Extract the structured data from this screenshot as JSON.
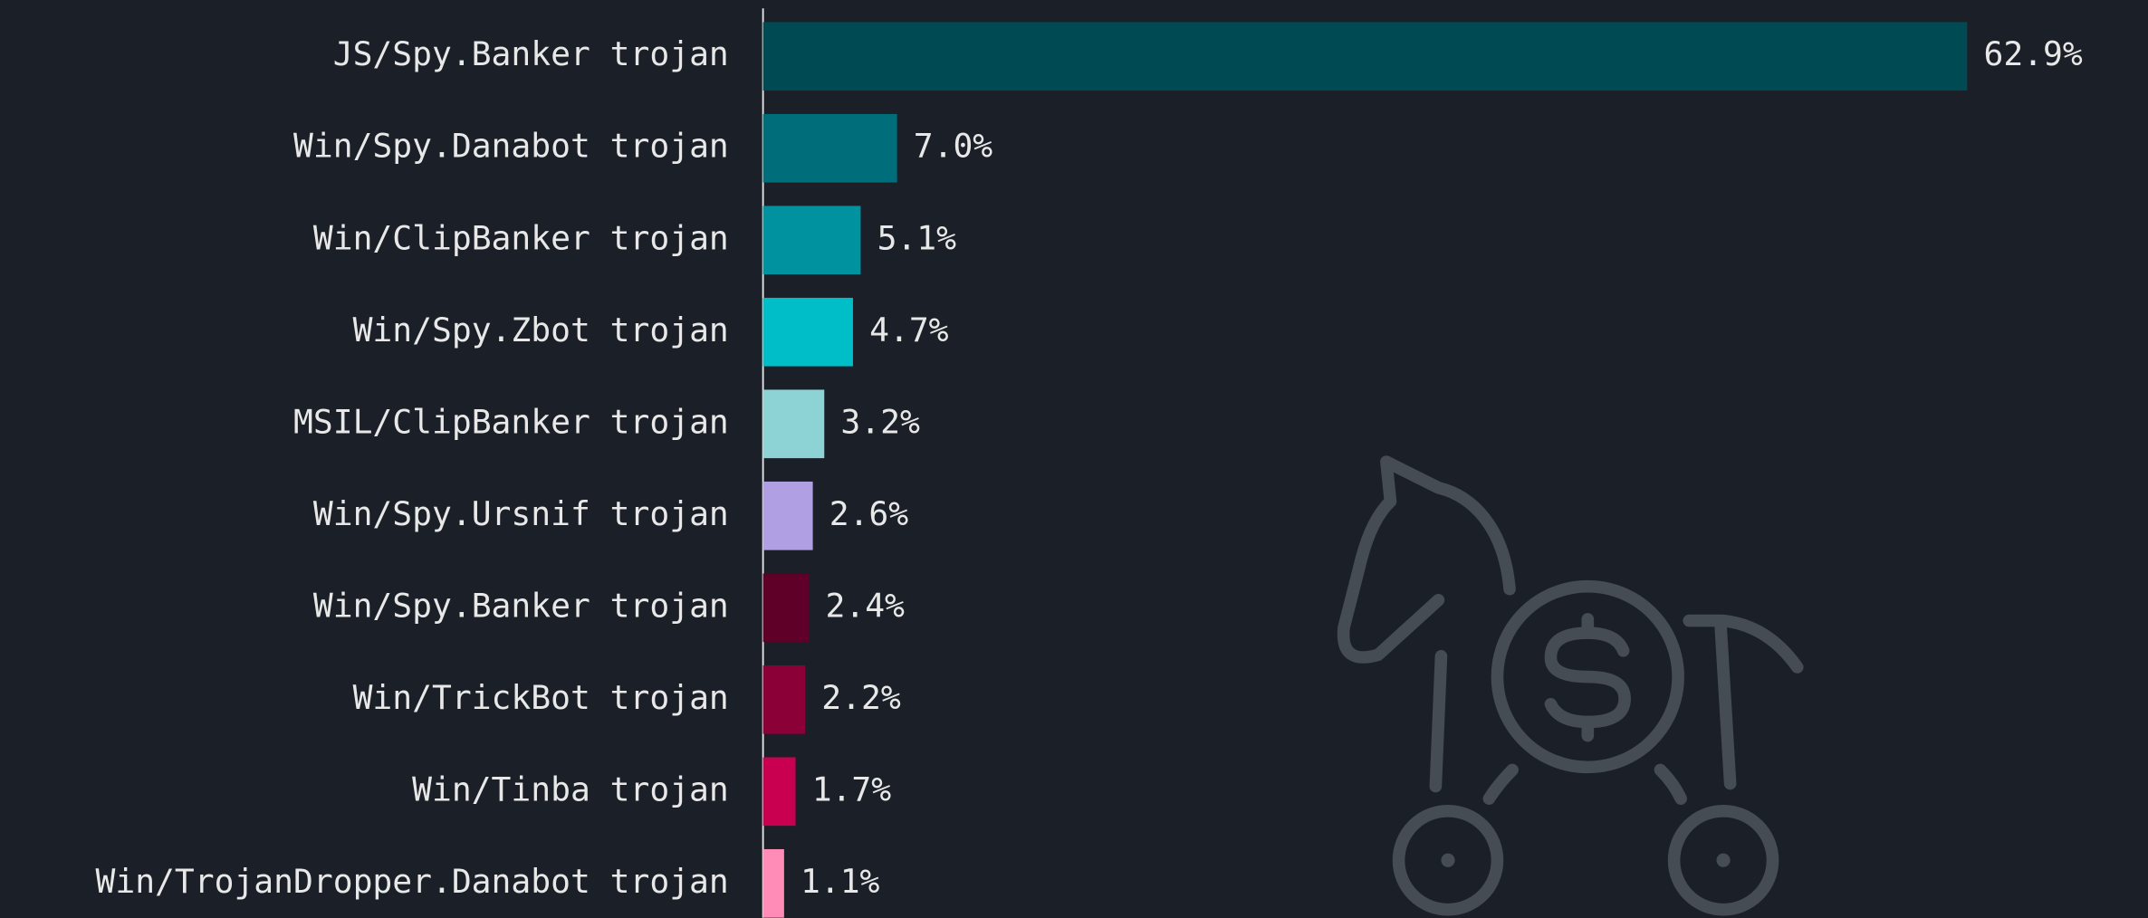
{
  "chart_data": {
    "type": "bar",
    "orientation": "horizontal",
    "categories": [
      "JS/Spy.Banker trojan",
      "Win/Spy.Danabot trojan",
      "Win/ClipBanker trojan",
      "Win/Spy.Zbot trojan",
      "MSIL/ClipBanker trojan",
      "Win/Spy.Ursnif trojan",
      "Win/Spy.Banker trojan",
      "Win/TrickBot trojan",
      "Win/Tinba trojan",
      "Win/TrojanDropper.Danabot trojan"
    ],
    "values": [
      62.9,
      7.0,
      5.1,
      4.7,
      3.2,
      2.6,
      2.4,
      2.2,
      1.7,
      1.1
    ],
    "value_labels": [
      "62.9%",
      "7.0%",
      "5.1%",
      "4.7%",
      "3.2%",
      "2.6%",
      "2.4%",
      "2.2%",
      "1.7%",
      "1.1%"
    ],
    "colors": [
      "#004a54",
      "#006d7a",
      "#00939f",
      "#00bec7",
      "#8dd3d6",
      "#b19fe3",
      "#5e0028",
      "#8c0038",
      "#c8004f",
      "#ff8cb6"
    ]
  }
}
